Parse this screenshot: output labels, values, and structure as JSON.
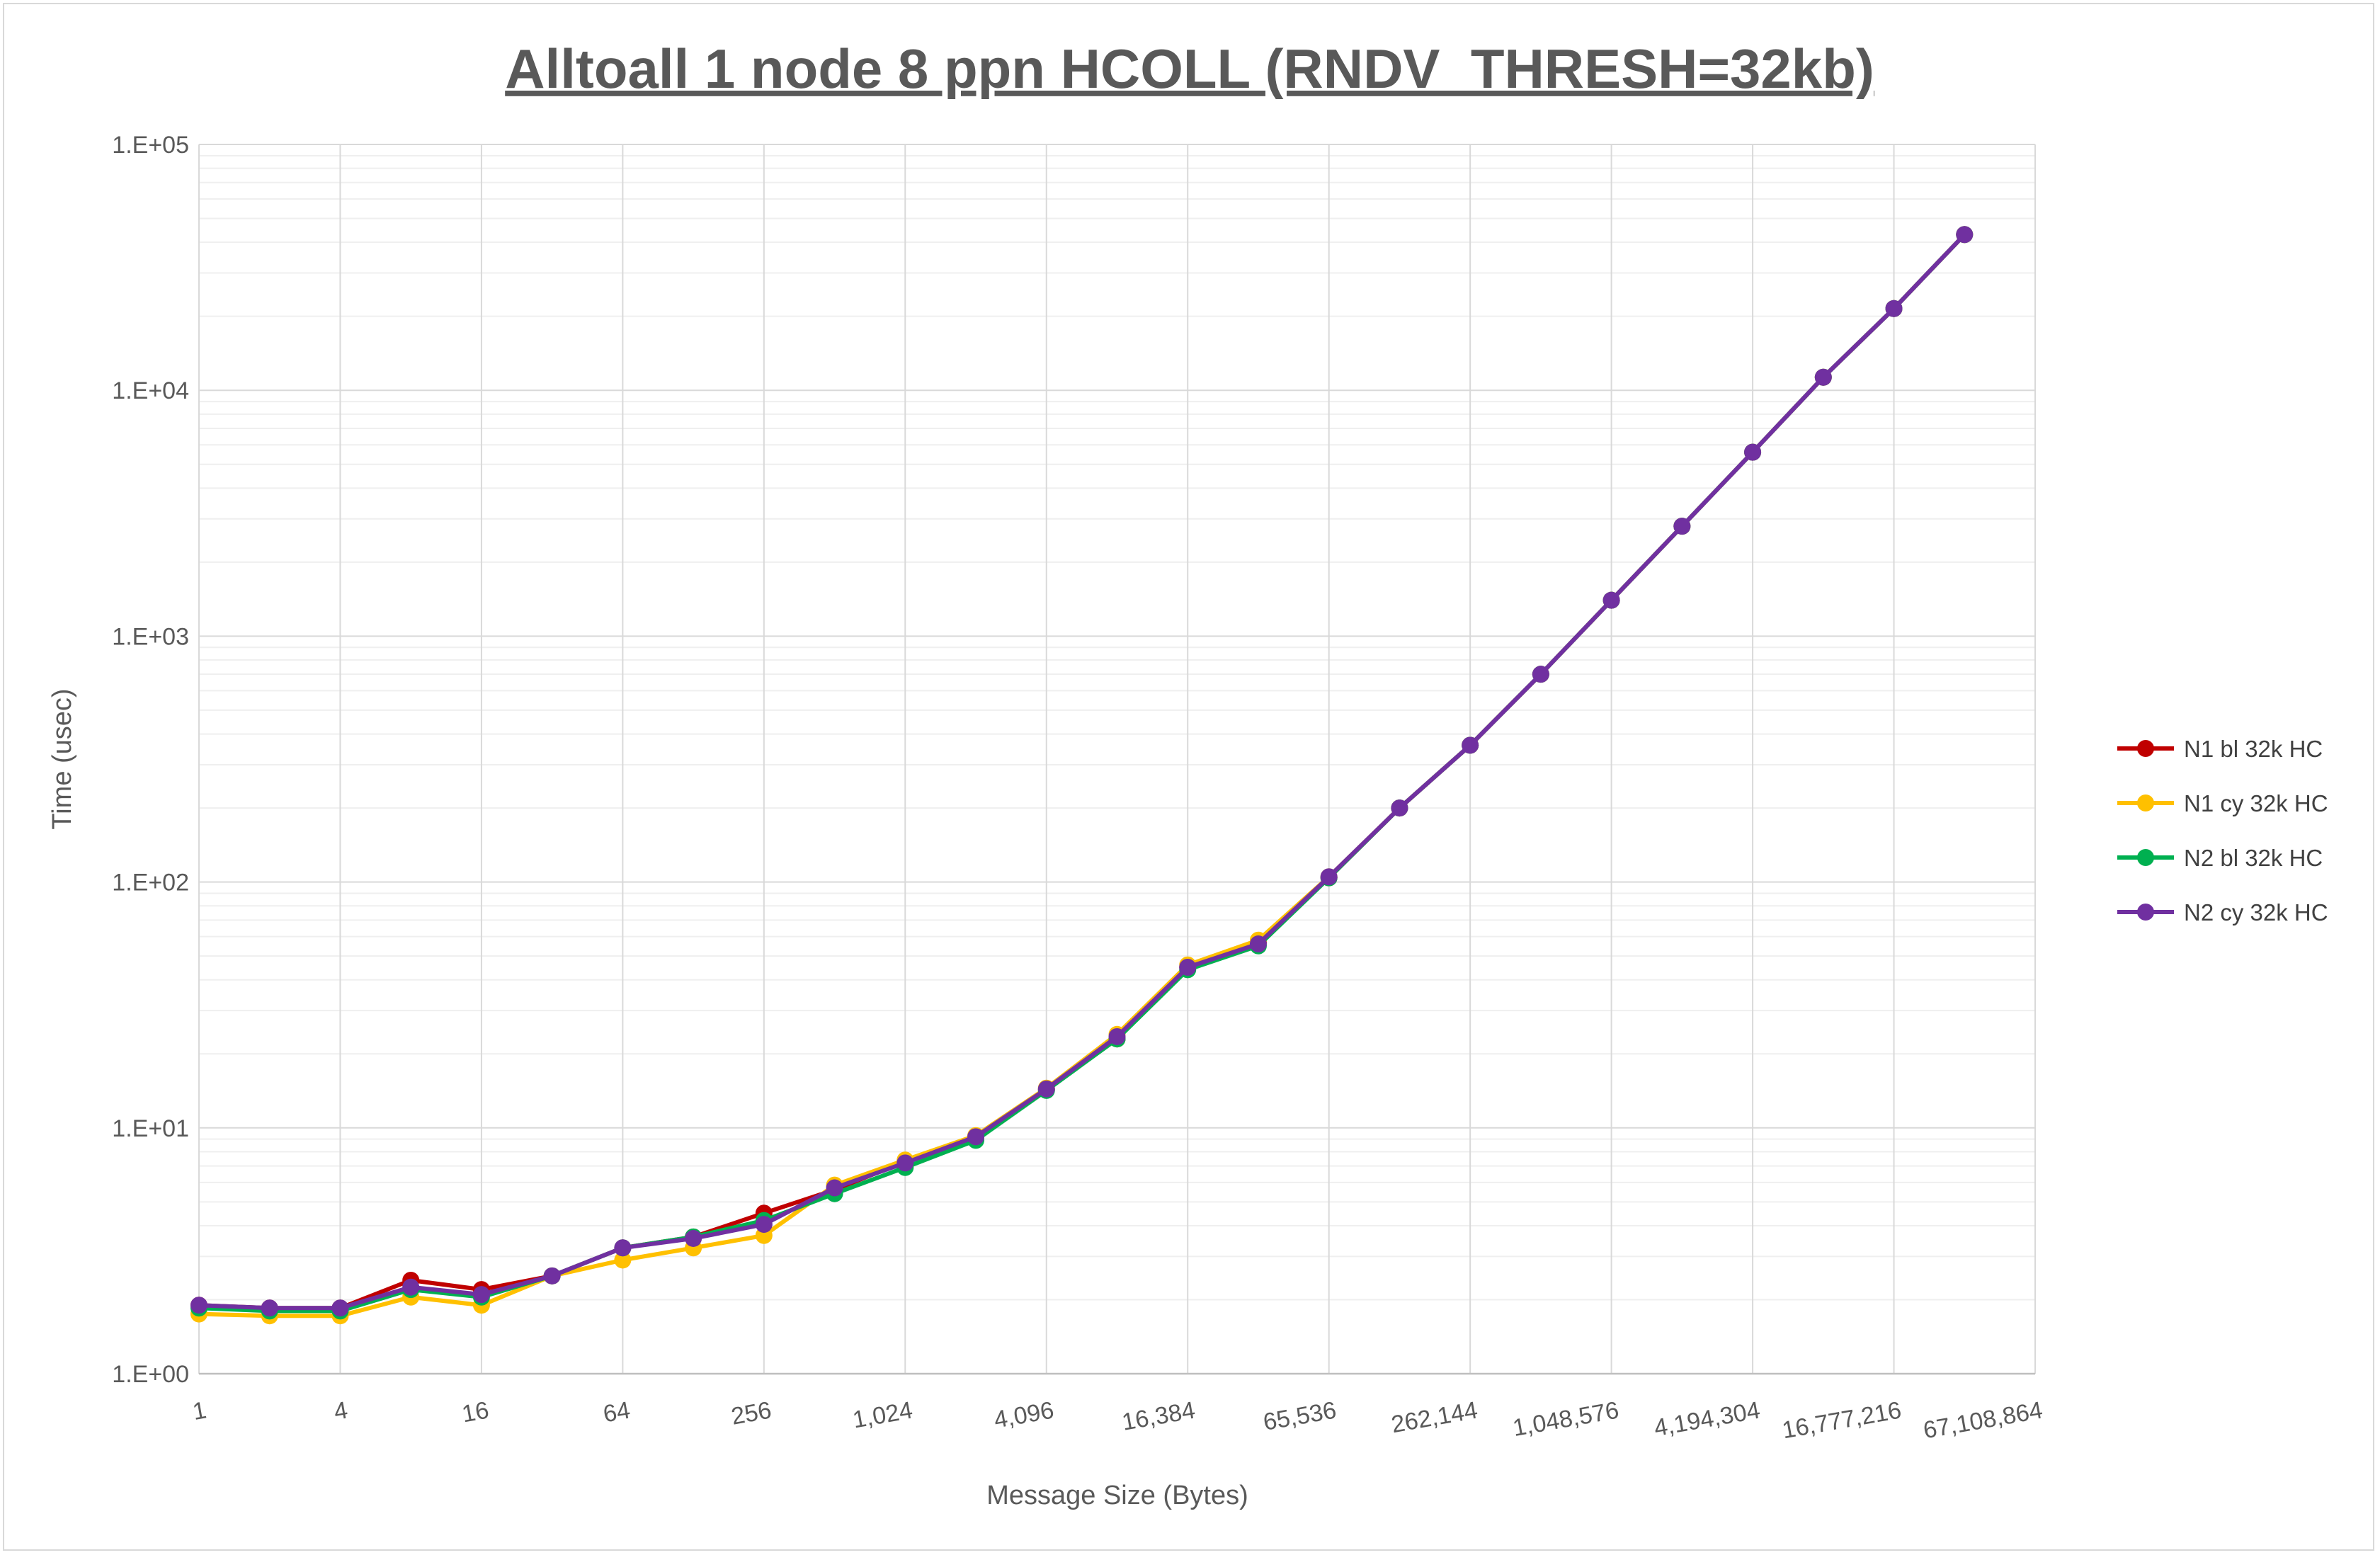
{
  "chart_data": {
    "type": "line",
    "title": "Alltoall 1 node 8 ppn HCOLL (RNDV_THRESH=32kb)",
    "xlabel": "Message Size (Bytes)",
    "ylabel": "Time (usec)",
    "x_scale": "log2",
    "y_scale": "log10",
    "xlim": [
      1,
      67108864
    ],
    "ylim": [
      1,
      100000
    ],
    "x_tick_values": [
      1,
      4,
      16,
      64,
      256,
      1024,
      4096,
      16384,
      65536,
      262144,
      1048576,
      4194304,
      16777216,
      67108864
    ],
    "x_tick_labels": [
      "1",
      "4",
      "16",
      "64",
      "256",
      "1,024",
      "4,096",
      "16,384",
      "65,536",
      "262,144",
      "1,048,576",
      "4,194,304",
      "16,777,216",
      "67,108,864"
    ],
    "y_tick_values": [
      1,
      10,
      100,
      1000,
      10000,
      100000
    ],
    "y_tick_labels": [
      "1.E+00",
      "1.E+01",
      "1.E+02",
      "1.E+03",
      "1.E+04",
      "1.E+05"
    ],
    "grid": true,
    "legend_position": "right",
    "x": [
      1,
      2,
      4,
      8,
      16,
      32,
      64,
      128,
      256,
      512,
      1024,
      2048,
      4096,
      8192,
      16384,
      32768,
      65536,
      131072,
      262144,
      524288,
      1048576,
      2097152,
      4194304,
      8388608,
      16777216,
      33554432
    ],
    "series": [
      {
        "name": "N1 bl 32k HC",
        "color": "#c00000",
        "values": [
          1.9,
          1.85,
          1.85,
          2.4,
          2.2,
          2.5,
          3.25,
          3.6,
          4.5,
          5.6,
          7.3,
          9.2,
          14.3,
          23,
          45,
          57,
          104,
          200,
          360,
          700,
          1400,
          2800,
          5600,
          11300,
          21500,
          43000
        ]
      },
      {
        "name": "N1 cy 32k HC",
        "color": "#ffc000",
        "values": [
          1.75,
          1.72,
          1.72,
          2.05,
          1.9,
          2.5,
          2.9,
          3.25,
          3.65,
          5.85,
          7.4,
          9.3,
          14.5,
          24,
          46,
          58,
          105,
          200,
          360,
          700,
          1400,
          2800,
          5600,
          11300,
          21500,
          43000
        ]
      },
      {
        "name": "N2 bl 32k HC",
        "color": "#00b050",
        "values": [
          1.85,
          1.8,
          1.8,
          2.2,
          2.05,
          2.5,
          3.25,
          3.6,
          4.2,
          5.4,
          6.9,
          8.9,
          14.2,
          23,
          44,
          55,
          104,
          200,
          360,
          700,
          1400,
          2800,
          5600,
          11300,
          21500,
          43000
        ]
      },
      {
        "name": "N2 cy 32k HC",
        "color": "#7030a0",
        "values": [
          1.9,
          1.85,
          1.85,
          2.25,
          2.1,
          2.5,
          3.25,
          3.55,
          4.05,
          5.7,
          7.2,
          9.2,
          14.4,
          23.5,
          45,
          56,
          105,
          200,
          360,
          700,
          1400,
          2800,
          5600,
          11300,
          21500,
          43000
        ]
      }
    ]
  }
}
